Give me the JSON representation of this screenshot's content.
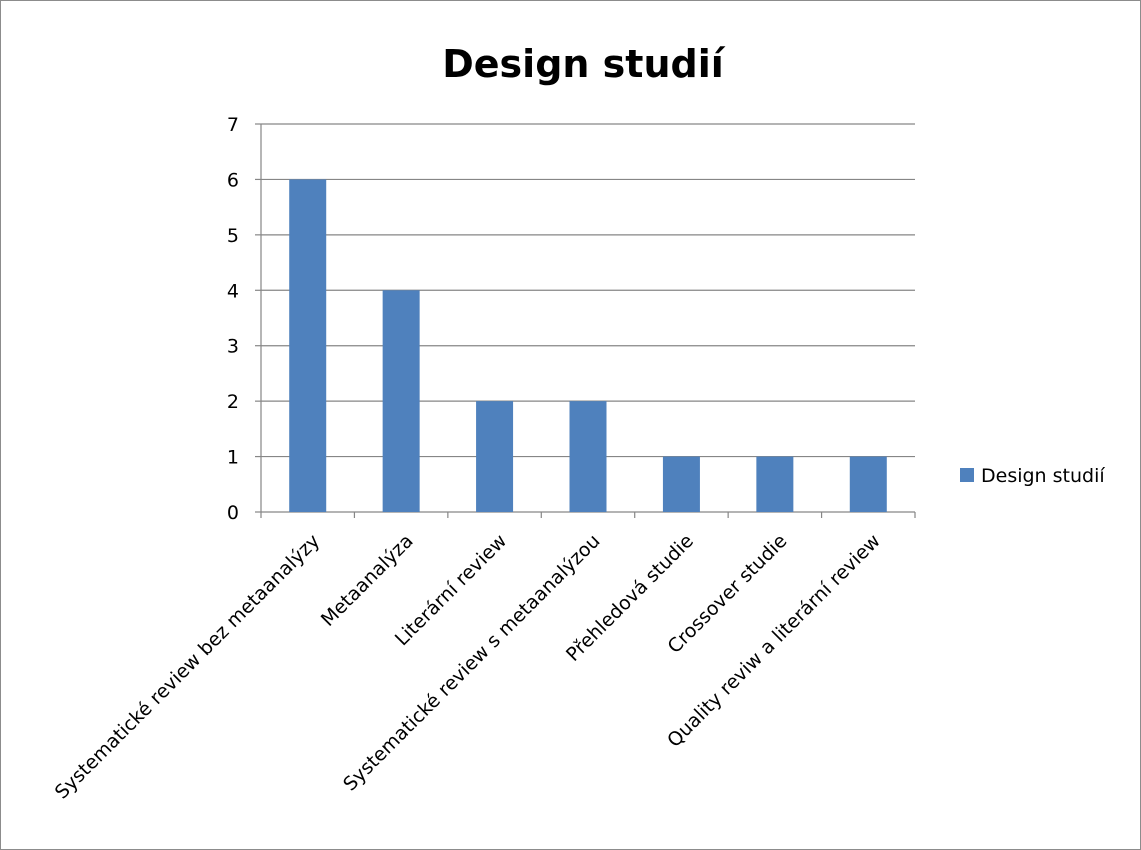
{
  "chart_data": {
    "type": "bar",
    "title": "Design studií",
    "xlabel": "",
    "ylabel": "",
    "ylim": [
      0,
      7
    ],
    "yticks": [
      0,
      1,
      2,
      3,
      4,
      5,
      6,
      7
    ],
    "grid": true,
    "legend_position": "right",
    "categories": [
      "Systematické review bez metaanalýzy",
      "Metaanalýza",
      "Literární review",
      "Systematické review s metaanalýzou",
      "Přehledová studie",
      "Crossover studie",
      "Quality reviw a literární review"
    ],
    "series": [
      {
        "name": "Design studií",
        "color": "#4f81bd",
        "values": [
          6,
          4,
          2,
          2,
          1,
          1,
          1
        ]
      }
    ]
  }
}
